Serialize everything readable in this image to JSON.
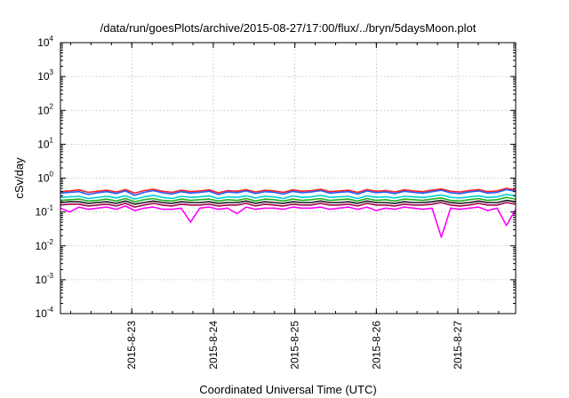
{
  "chart_data": {
    "type": "line",
    "title": "/data/run/goesPlots/archive/2015-08-27/17:00/flux/../bryn/5daysMoon.plot",
    "xlabel": "Coordinated Universal Time (UTC)",
    "ylabel": "cSv/day",
    "yscale": "log",
    "ylim": [
      0.0001,
      10000
    ],
    "xlim": [
      "2015-08-22T03:00",
      "2015-08-27T17:00"
    ],
    "grid": true,
    "y_ticks": [
      {
        "base": "10",
        "exp": "-4"
      },
      {
        "base": "10",
        "exp": "-3"
      },
      {
        "base": "10",
        "exp": "-2"
      },
      {
        "base": "10",
        "exp": "-1"
      },
      {
        "base": "10",
        "exp": "0"
      },
      {
        "base": "10",
        "exp": "1"
      },
      {
        "base": "10",
        "exp": "2"
      },
      {
        "base": "10",
        "exp": "3"
      },
      {
        "base": "10",
        "exp": "4"
      }
    ],
    "x_ticks": [
      {
        "label": "2015-8-23",
        "value": "2015-08-23T00:00"
      },
      {
        "label": "2015-8-24",
        "value": "2015-08-24T00:00"
      },
      {
        "label": "2015-8-25",
        "value": "2015-08-25T00:00"
      },
      {
        "label": "2015-8-26",
        "value": "2015-08-26T00:00"
      },
      {
        "label": "2015-8-27",
        "value": "2015-08-27T00:00"
      }
    ],
    "series": [
      {
        "color": "#ff2020",
        "values": [
          0.4,
          0.42,
          0.45,
          0.38,
          0.41,
          0.44,
          0.39,
          0.46,
          0.36,
          0.43,
          0.47,
          0.41,
          0.38,
          0.44,
          0.4,
          0.42,
          0.45,
          0.37,
          0.43,
          0.41,
          0.46,
          0.39,
          0.44,
          0.42,
          0.38,
          0.45,
          0.41,
          0.43,
          0.47,
          0.4,
          0.42,
          0.44,
          0.38,
          0.46,
          0.41,
          0.43,
          0.39,
          0.45,
          0.42,
          0.4,
          0.44,
          0.48,
          0.41,
          0.39,
          0.43,
          0.46,
          0.4,
          0.42,
          0.5,
          0.45
        ]
      },
      {
        "color": "#1e5aff",
        "values": [
          0.36,
          0.38,
          0.4,
          0.33,
          0.37,
          0.4,
          0.35,
          0.42,
          0.31,
          0.38,
          0.43,
          0.37,
          0.34,
          0.4,
          0.36,
          0.38,
          0.41,
          0.33,
          0.39,
          0.37,
          0.42,
          0.35,
          0.4,
          0.38,
          0.34,
          0.41,
          0.37,
          0.39,
          0.43,
          0.36,
          0.38,
          0.4,
          0.34,
          0.42,
          0.37,
          0.39,
          0.35,
          0.41,
          0.38,
          0.36,
          0.4,
          0.44,
          0.37,
          0.35,
          0.39,
          0.42,
          0.36,
          0.38,
          0.46,
          0.41
        ]
      },
      {
        "color": "#00d0d0",
        "values": [
          0.27,
          0.28,
          0.29,
          0.25,
          0.27,
          0.29,
          0.26,
          0.3,
          0.24,
          0.28,
          0.31,
          0.27,
          0.25,
          0.29,
          0.27,
          0.28,
          0.3,
          0.25,
          0.28,
          0.27,
          0.3,
          0.26,
          0.29,
          0.28,
          0.25,
          0.3,
          0.27,
          0.28,
          0.31,
          0.27,
          0.28,
          0.29,
          0.25,
          0.3,
          0.27,
          0.28,
          0.26,
          0.29,
          0.28,
          0.27,
          0.29,
          0.32,
          0.27,
          0.26,
          0.28,
          0.3,
          0.27,
          0.28,
          0.33,
          0.3
        ]
      },
      {
        "color": "#20b020",
        "values": [
          0.22,
          0.23,
          0.24,
          0.21,
          0.22,
          0.24,
          0.21,
          0.25,
          0.2,
          0.23,
          0.25,
          0.22,
          0.21,
          0.24,
          0.22,
          0.23,
          0.24,
          0.21,
          0.23,
          0.22,
          0.25,
          0.21,
          0.24,
          0.23,
          0.21,
          0.24,
          0.22,
          0.23,
          0.25,
          0.22,
          0.23,
          0.24,
          0.21,
          0.25,
          0.22,
          0.23,
          0.21,
          0.24,
          0.23,
          0.22,
          0.24,
          0.26,
          0.22,
          0.21,
          0.23,
          0.25,
          0.22,
          0.23,
          0.27,
          0.24
        ]
      },
      {
        "color": "#1a1a1a",
        "values": [
          0.19,
          0.2,
          0.2,
          0.18,
          0.19,
          0.2,
          0.18,
          0.21,
          0.17,
          0.19,
          0.21,
          0.19,
          0.18,
          0.2,
          0.19,
          0.19,
          0.2,
          0.18,
          0.19,
          0.19,
          0.21,
          0.18,
          0.2,
          0.19,
          0.18,
          0.2,
          0.19,
          0.19,
          0.21,
          0.19,
          0.19,
          0.2,
          0.18,
          0.21,
          0.19,
          0.19,
          0.18,
          0.2,
          0.19,
          0.19,
          0.2,
          0.22,
          0.19,
          0.18,
          0.19,
          0.21,
          0.19,
          0.19,
          0.22,
          0.2
        ]
      },
      {
        "color": "#a00050",
        "values": [
          0.16,
          0.17,
          0.17,
          0.15,
          0.16,
          0.17,
          0.15,
          0.18,
          0.14,
          0.16,
          0.18,
          0.16,
          0.15,
          0.17,
          0.16,
          0.16,
          0.17,
          0.15,
          0.16,
          0.16,
          0.18,
          0.15,
          0.17,
          0.16,
          0.15,
          0.17,
          0.16,
          0.16,
          0.18,
          0.16,
          0.16,
          0.17,
          0.15,
          0.18,
          0.16,
          0.16,
          0.15,
          0.17,
          0.16,
          0.16,
          0.17,
          0.19,
          0.16,
          0.15,
          0.16,
          0.18,
          0.16,
          0.16,
          0.19,
          0.17
        ]
      },
      {
        "color": "#ff00ff",
        "values": [
          0.13,
          0.1,
          0.14,
          0.12,
          0.13,
          0.14,
          0.12,
          0.15,
          0.11,
          0.13,
          0.14,
          0.12,
          0.12,
          0.13,
          0.05,
          0.13,
          0.14,
          0.12,
          0.13,
          0.09,
          0.14,
          0.12,
          0.13,
          0.13,
          0.12,
          0.14,
          0.13,
          0.13,
          0.14,
          0.12,
          0.13,
          0.14,
          0.12,
          0.14,
          0.11,
          0.13,
          0.12,
          0.14,
          0.13,
          0.12,
          0.13,
          0.018,
          0.13,
          0.12,
          0.13,
          0.14,
          0.11,
          0.13,
          0.04,
          0.12
        ]
      }
    ]
  }
}
